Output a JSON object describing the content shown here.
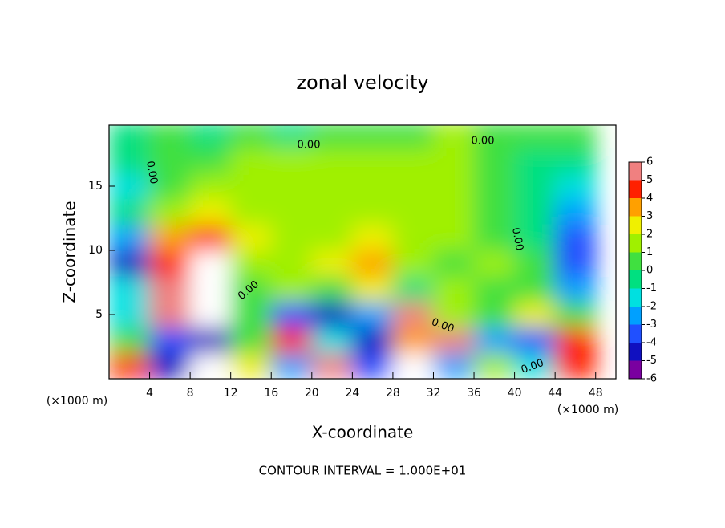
{
  "chart_data": {
    "type": "heatmap",
    "title": "zonal velocity",
    "x_label": "X-coordinate",
    "y_label": "Z-coordinate",
    "x_unit_label": "(×1000 m)",
    "y_unit_label": "(×1000 m)",
    "footer": "CONTOUR INTERVAL = 1.000E+01",
    "annotations": [
      "0.00",
      "0.00",
      "0.00",
      "0.00",
      "0.00",
      "0.00",
      "0.00"
    ],
    "xlim": [
      0,
      50
    ],
    "ylim": [
      0,
      19.75
    ],
    "xticks": [
      4,
      8,
      12,
      16,
      20,
      24,
      28,
      32,
      36,
      40,
      44,
      48
    ],
    "yticks": [
      5,
      10,
      15
    ],
    "x": [
      2,
      6,
      10,
      14,
      18,
      22,
      26,
      30,
      34,
      38,
      42,
      46
    ],
    "y": [
      1,
      3,
      5,
      7,
      9,
      11,
      13,
      15,
      17,
      19
    ],
    "z": [
      [
        4,
        -5,
        8,
        2,
        -3,
        5,
        -4,
        8,
        -3,
        1,
        -2,
        4
      ],
      [
        0,
        -4,
        -5,
        0,
        4,
        -2,
        -5,
        3,
        6,
        -3,
        -4,
        4
      ],
      [
        -2,
        5,
        7,
        0,
        -4,
        -5,
        -3,
        5,
        1,
        0,
        2,
        0
      ],
      [
        -2,
        6,
        8,
        0,
        1,
        0,
        2,
        -1,
        1,
        0,
        0,
        -3
      ],
      [
        -5,
        4,
        8,
        1,
        1,
        2,
        3,
        1,
        0,
        1,
        0,
        -4
      ],
      [
        -3,
        3,
        4,
        2,
        1,
        1,
        2,
        1,
        1,
        0,
        -1,
        -4
      ],
      [
        -1,
        1,
        2,
        1,
        1,
        1,
        1,
        1,
        1,
        0,
        -1,
        -3
      ],
      [
        -2,
        0,
        1,
        1,
        1,
        1,
        1,
        1,
        1,
        0,
        -1,
        -2
      ],
      [
        -1,
        0,
        0,
        1,
        1,
        1,
        1,
        1,
        1,
        0,
        -1,
        -1
      ],
      [
        -1,
        0,
        -1,
        0,
        -1,
        0,
        0,
        0,
        1,
        0,
        0,
        0
      ]
    ],
    "colorbar_ticks": [
      -6,
      -5,
      -4,
      -3,
      -2,
      -1,
      0,
      1,
      2,
      3,
      4,
      5,
      6
    ],
    "colorbar_colors": [
      "#7a00a0",
      "#1010c0",
      "#2050ff",
      "#00a0ff",
      "#00e0e0",
      "#00e080",
      "#40e040",
      "#a0f000",
      "#f0f000",
      "#ffa000",
      "#ff2000",
      "#f08080"
    ],
    "over_color": "#ffffff"
  }
}
